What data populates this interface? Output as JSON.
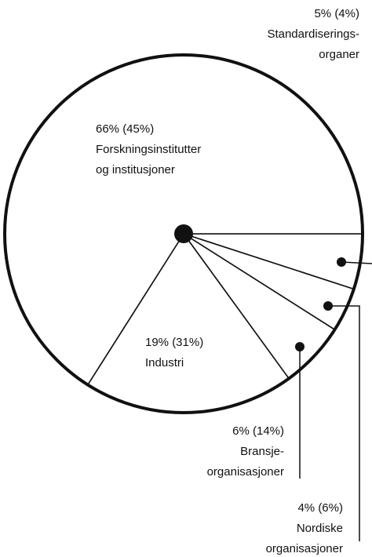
{
  "chart_data": {
    "type": "pie",
    "categories": [
      [
        "Standardiserings-",
        "organer"
      ],
      [
        "Nordiske",
        "organisasjoner"
      ],
      [
        "Bransje-",
        "organisasjoner"
      ],
      [
        "Industri"
      ],
      [
        "Forskningsinstitutter",
        "og institusjoner"
      ]
    ],
    "values": [
      5,
      4,
      6,
      19,
      66
    ],
    "value_labels": [
      "5% (4%)",
      "4% (6%)",
      "6% (14%)",
      "19% (31%)",
      "66% (45%)"
    ],
    "color": "#ffffff",
    "stroke": "#111111"
  }
}
